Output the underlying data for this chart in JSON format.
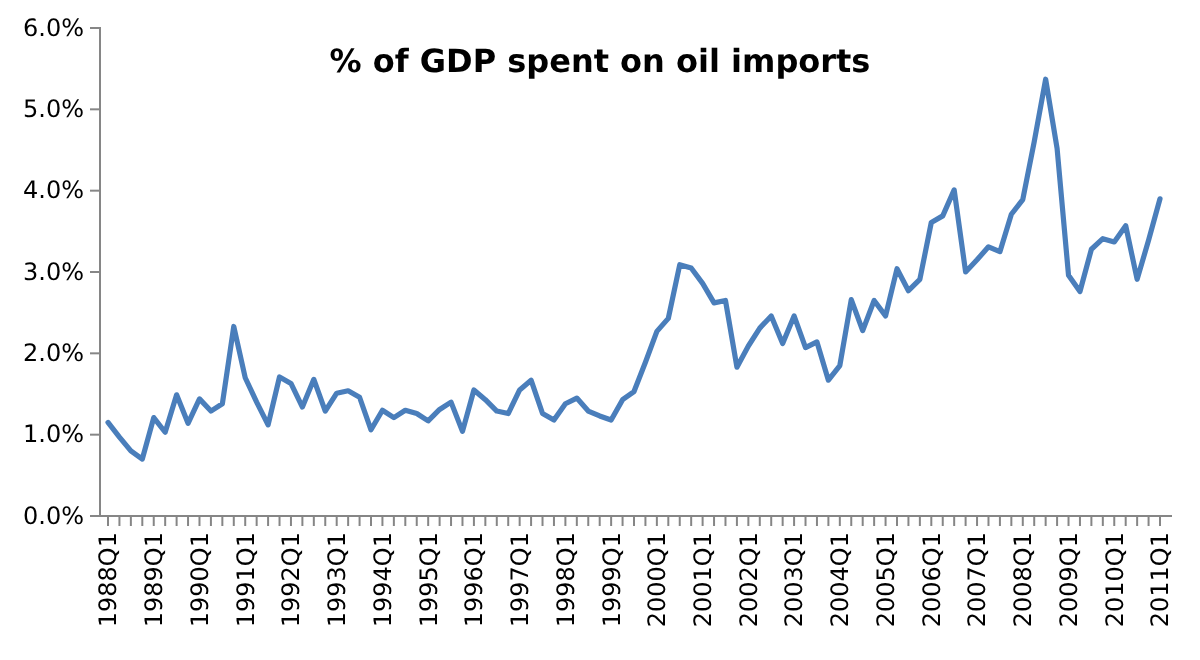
{
  "chart_data": {
    "type": "line",
    "title": "% of GDP spent on oil imports",
    "categories": [
      "1988Q1",
      null,
      null,
      null,
      "1989Q1",
      null,
      null,
      null,
      "1990Q1",
      null,
      null,
      null,
      "1991Q1",
      null,
      null,
      null,
      "1992Q1",
      null,
      null,
      null,
      "1993Q1",
      null,
      null,
      null,
      "1994Q1",
      null,
      null,
      null,
      "1995Q1",
      null,
      null,
      null,
      "1996Q1",
      null,
      null,
      null,
      "1997Q1",
      null,
      null,
      null,
      "1998Q1",
      null,
      null,
      null,
      "1999Q1",
      null,
      null,
      null,
      "2000Q1",
      null,
      null,
      null,
      "2001Q1",
      null,
      null,
      null,
      "2002Q1",
      null,
      null,
      null,
      "2003Q1",
      null,
      null,
      null,
      "2004Q1",
      null,
      null,
      null,
      "2005Q1",
      null,
      null,
      null,
      "2006Q1",
      null,
      null,
      null,
      "2007Q1",
      null,
      null,
      null,
      "2008Q1",
      null,
      null,
      null,
      "2009Q1",
      null,
      null,
      null,
      "2010Q1",
      null,
      null,
      null,
      "2011Q1"
    ],
    "series": [
      {
        "color": "#4a7ebb",
        "values": [
          1.15,
          0.97,
          0.8,
          0.7,
          1.21,
          1.03,
          1.49,
          1.14,
          1.44,
          1.29,
          1.38,
          2.33,
          1.7,
          1.4,
          1.12,
          1.71,
          1.63,
          1.34,
          1.68,
          1.29,
          1.51,
          1.54,
          1.46,
          1.06,
          1.3,
          1.21,
          1.3,
          1.26,
          1.17,
          1.31,
          1.4,
          1.04,
          1.55,
          1.43,
          1.29,
          1.26,
          1.55,
          1.67,
          1.26,
          1.18,
          1.38,
          1.45,
          1.29,
          1.23,
          1.18,
          1.43,
          1.53,
          1.89,
          2.27,
          2.43,
          3.09,
          3.05,
          2.86,
          2.62,
          2.65,
          1.83,
          2.09,
          2.31,
          2.46,
          2.12,
          2.46,
          2.07,
          2.14,
          1.67,
          1.85,
          2.66,
          2.28,
          2.65,
          2.46,
          3.04,
          2.77,
          2.91,
          3.61,
          3.69,
          4.01,
          3.0,
          3.15,
          3.31,
          3.25,
          3.71,
          3.89,
          4.6,
          5.37,
          4.52,
          2.96,
          2.76,
          3.28,
          3.41,
          3.37,
          3.57,
          2.91,
          3.39,
          3.9
        ]
      }
    ],
    "ylim": [
      0,
      6
    ],
    "yticks": [
      {
        "value": 0,
        "label": "0.0%"
      },
      {
        "value": 1,
        "label": "1.0%"
      },
      {
        "value": 2,
        "label": "2.0%"
      },
      {
        "value": 3,
        "label": "3.0%"
      },
      {
        "value": 4,
        "label": "4.0%"
      },
      {
        "value": 5,
        "label": "5.0%"
      },
      {
        "value": 6,
        "label": "6.0%"
      }
    ],
    "grid": false,
    "marker": "none",
    "line_style": "solid"
  }
}
